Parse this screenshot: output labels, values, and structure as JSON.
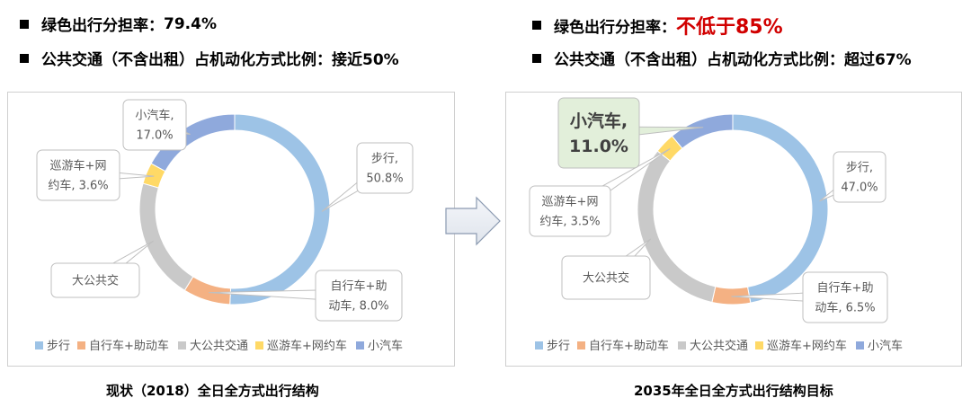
{
  "bullets_left": {
    "line1_label": "绿色出行分担率：",
    "line1_value": "79.4%",
    "line2_label": "公共交通（不含出租）占机动化方式比例：",
    "line2_value": "接近50%"
  },
  "bullets_right": {
    "line1_label": "绿色出行分担率：",
    "line1_value": "不低于85%",
    "line2_label": "公共交通（不含出租）占机动化方式比例：",
    "line2_value": "超过67%"
  },
  "caption_left": "现状（2018）全日全方式出行结构",
  "caption_right": "2035年全日全方式出行结构目标",
  "colors": {
    "walk": "#9dc3e6",
    "bike": "#f4b183",
    "bus": "#c9c9c9",
    "taxi": "#ffd966",
    "car": "#8fa9dc",
    "accent_red": "#d10000",
    "highlight_fill": "#e2efda"
  },
  "chart_data": [
    {
      "type": "pie",
      "subtype": "donut",
      "categories": [
        "步行",
        "自行车+助动车",
        "大公共交通",
        "巡游车+网约车",
        "小汽车"
      ],
      "values": [
        50.8,
        8.0,
        20.6,
        3.6,
        17.0
      ],
      "labels": [
        [
          "步行,",
          "50.8%"
        ],
        [
          "自行车+助",
          "动车, 8.0%"
        ],
        [
          "大公共交"
        ],
        [
          "巡游车+网",
          "约车, 3.6%"
        ],
        [
          "小汽车,",
          "17.0%"
        ]
      ],
      "legend": [
        "步行",
        "自行车+助动车",
        "大公共交通",
        "巡游车+网约车",
        "小汽车"
      ],
      "legend_position": "bottom"
    },
    {
      "type": "pie",
      "subtype": "donut",
      "categories": [
        "步行",
        "自行车+助动车",
        "大公共交通",
        "巡游车+网约车",
        "小汽车"
      ],
      "values": [
        47.0,
        6.5,
        32.0,
        3.5,
        11.0
      ],
      "labels": [
        [
          "步行,",
          "47.0%"
        ],
        [
          "自行车+助",
          "动车, 6.5%"
        ],
        [
          "大公共交"
        ],
        [
          "巡游车+网",
          "约车, 3.5%"
        ],
        [
          "小汽车,",
          "11.0%"
        ]
      ],
      "legend": [
        "步行",
        "自行车+助动车",
        "大公共交通",
        "巡游车+网约车",
        "小汽车"
      ],
      "legend_position": "bottom",
      "highlight_category": "小汽车"
    }
  ]
}
